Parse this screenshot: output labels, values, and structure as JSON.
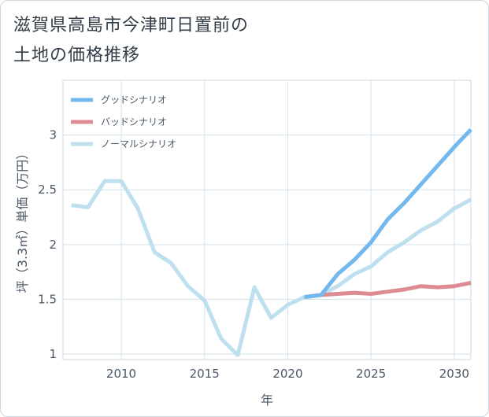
{
  "title": {
    "line1": "滋賀県高島市今津町日置前の",
    "line2": "土地の価格推移"
  },
  "chart_data": {
    "type": "line",
    "xlabel": "年",
    "ylabel": "坪（3.3㎡）単価（万円）",
    "xlim": [
      2006.5,
      2031
    ],
    "ylim": [
      0.95,
      3.5
    ],
    "xticks": [
      2010,
      2015,
      2020,
      2025,
      2030
    ],
    "yticks": [
      1,
      1.5,
      2,
      2.5,
      3
    ],
    "grid": true,
    "legend_position": "top-left",
    "series": [
      {
        "name": "グッドシナリオ",
        "color": "#74b9ee",
        "x": [
          2021,
          2022,
          2023,
          2024,
          2025,
          2026,
          2027,
          2028,
          2029,
          2030,
          2031
        ],
        "y": [
          1.52,
          1.54,
          1.73,
          1.86,
          2.02,
          2.23,
          2.38,
          2.55,
          2.72,
          2.89,
          3.05
        ]
      },
      {
        "name": "バッドシナリオ",
        "color": "#dc8c92",
        "x": [
          2021,
          2022,
          2023,
          2024,
          2025,
          2026,
          2027,
          2028,
          2029,
          2030,
          2031
        ],
        "y": [
          1.52,
          1.54,
          1.55,
          1.56,
          1.55,
          1.57,
          1.59,
          1.62,
          1.61,
          1.62,
          1.65
        ]
      },
      {
        "name": "ノーマルシナリオ",
        "color": "#bee0ee",
        "x": [
          2007,
          2008,
          2009,
          2010,
          2011,
          2012,
          2013,
          2014,
          2015,
          2016,
          2017,
          2018,
          2019,
          2020,
          2021,
          2022,
          2023,
          2024,
          2025,
          2026,
          2027,
          2028,
          2029,
          2030,
          2031
        ],
        "y": [
          2.36,
          2.34,
          2.58,
          2.58,
          2.33,
          1.93,
          1.83,
          1.62,
          1.49,
          1.14,
          0.99,
          1.61,
          1.33,
          1.45,
          1.52,
          1.54,
          1.62,
          1.73,
          1.8,
          1.93,
          2.02,
          2.13,
          2.21,
          2.33,
          2.41
        ]
      }
    ]
  }
}
